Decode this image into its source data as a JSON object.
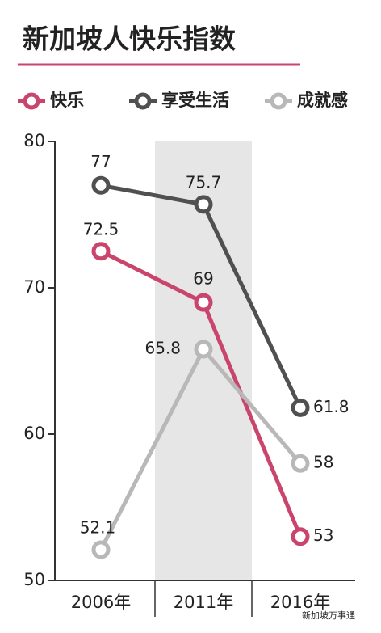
{
  "chart_data": {
    "type": "line",
    "title": "新加坡人快乐指数",
    "categories": [
      "2006年",
      "2011年",
      "2016年"
    ],
    "series": [
      {
        "name": "快乐",
        "color": "#c9456d",
        "values": [
          72.5,
          69,
          53
        ]
      },
      {
        "name": "享受生活",
        "color": "#505050",
        "values": [
          77,
          75.7,
          61.8
        ]
      },
      {
        "name": "成就感",
        "color": "#b8b8b8",
        "values": [
          52.1,
          65.8,
          58
        ]
      }
    ],
    "ylim": [
      50,
      80
    ],
    "yticks": [
      50,
      60,
      70,
      80
    ],
    "highlight_category": 1,
    "watermark": "新加坡万事通"
  }
}
